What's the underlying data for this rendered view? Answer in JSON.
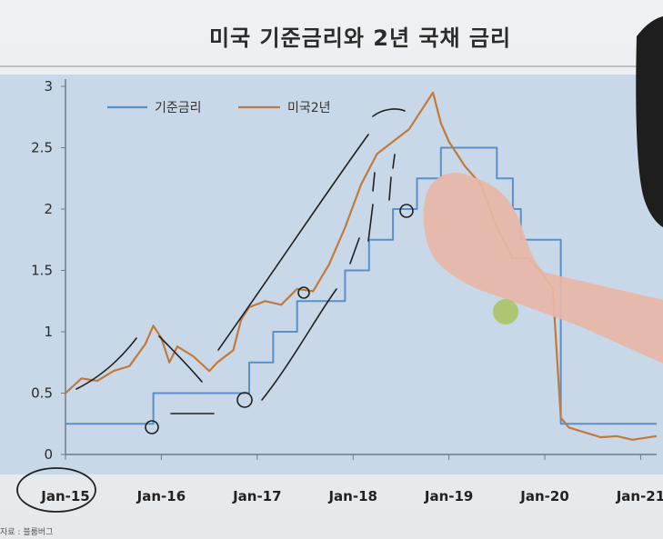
{
  "slide": {
    "title": "미국 기준금리와 2년 국채 금리",
    "source": "자료 : 블룸버그"
  },
  "chart_data": {
    "type": "line",
    "title": "미국 기준금리와 2년 국채 금리",
    "ylim": [
      0,
      3
    ],
    "yticks": [
      "0",
      "0.5",
      "1",
      "1.5",
      "2",
      "2.5",
      "3"
    ],
    "xticks": [
      "Jan-15",
      "Jan-16",
      "Jan-17",
      "Jan-18",
      "Jan-19",
      "Jan-20",
      "Jan-21"
    ],
    "xrange": [
      "2015-01",
      "2021-03"
    ],
    "legend_position": "top-left",
    "grid": false,
    "series": [
      {
        "name": "기준금리",
        "color": "#5b8fc7",
        "style": "step",
        "points": [
          [
            "2015-01",
            0.25
          ],
          [
            "2015-12",
            0.25
          ],
          [
            "2015-12",
            0.5
          ],
          [
            "2016-12",
            0.5
          ],
          [
            "2016-12",
            0.75
          ],
          [
            "2017-03",
            0.75
          ],
          [
            "2017-03",
            1.0
          ],
          [
            "2017-06",
            1.0
          ],
          [
            "2017-06",
            1.25
          ],
          [
            "2017-12",
            1.25
          ],
          [
            "2017-12",
            1.5
          ],
          [
            "2018-03",
            1.5
          ],
          [
            "2018-03",
            1.75
          ],
          [
            "2018-06",
            1.75
          ],
          [
            "2018-06",
            2.0
          ],
          [
            "2018-09",
            2.0
          ],
          [
            "2018-09",
            2.25
          ],
          [
            "2018-12",
            2.25
          ],
          [
            "2018-12",
            2.5
          ],
          [
            "2019-07",
            2.5
          ],
          [
            "2019-07",
            2.25
          ],
          [
            "2019-09",
            2.25
          ],
          [
            "2019-09",
            2.0
          ],
          [
            "2019-10",
            2.0
          ],
          [
            "2019-10",
            1.75
          ],
          [
            "2020-03",
            1.75
          ],
          [
            "2020-03",
            0.25
          ],
          [
            "2021-03",
            0.25
          ]
        ]
      },
      {
        "name": "미국2년",
        "color": "#c27a3a",
        "style": "line",
        "points": [
          [
            "2015-01",
            0.5
          ],
          [
            "2015-03",
            0.62
          ],
          [
            "2015-05",
            0.6
          ],
          [
            "2015-07",
            0.68
          ],
          [
            "2015-09",
            0.72
          ],
          [
            "2015-11",
            0.9
          ],
          [
            "2015-12",
            1.05
          ],
          [
            "2016-01",
            0.95
          ],
          [
            "2016-02",
            0.75
          ],
          [
            "2016-03",
            0.88
          ],
          [
            "2016-05",
            0.8
          ],
          [
            "2016-07",
            0.68
          ],
          [
            "2016-08",
            0.75
          ],
          [
            "2016-10",
            0.85
          ],
          [
            "2016-11",
            1.1
          ],
          [
            "2016-12",
            1.2
          ],
          [
            "2017-02",
            1.25
          ],
          [
            "2017-04",
            1.22
          ],
          [
            "2017-06",
            1.35
          ],
          [
            "2017-08",
            1.33
          ],
          [
            "2017-10",
            1.55
          ],
          [
            "2017-12",
            1.85
          ],
          [
            "2018-02",
            2.2
          ],
          [
            "2018-04",
            2.45
          ],
          [
            "2018-06",
            2.55
          ],
          [
            "2018-08",
            2.65
          ],
          [
            "2018-10",
            2.85
          ],
          [
            "2018-11",
            2.95
          ],
          [
            "2018-12",
            2.7
          ],
          [
            "2019-01",
            2.55
          ],
          [
            "2019-03",
            2.35
          ],
          [
            "2019-05",
            2.2
          ],
          [
            "2019-07",
            1.85
          ],
          [
            "2019-09",
            1.6
          ],
          [
            "2019-11",
            1.6
          ],
          [
            "2020-01",
            1.45
          ],
          [
            "2020-02",
            1.35
          ],
          [
            "2020-03",
            0.3
          ],
          [
            "2020-04",
            0.22
          ],
          [
            "2020-06",
            0.18
          ],
          [
            "2020-08",
            0.14
          ],
          [
            "2020-10",
            0.15
          ],
          [
            "2020-12",
            0.12
          ],
          [
            "2021-03",
            0.15
          ]
        ]
      }
    ]
  }
}
